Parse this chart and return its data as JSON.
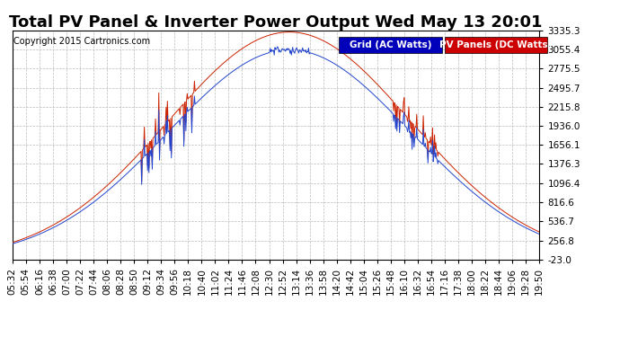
{
  "title": "Total PV Panel & Inverter Power Output Wed May 13 20:01",
  "copyright": "Copyright 2015 Cartronics.com",
  "legend_grid": "Grid (AC Watts)",
  "legend_pv": "PV Panels (DC Watts)",
  "legend_grid_bg": "#0000bb",
  "legend_pv_bg": "#cc0000",
  "line_grid_color": "#2244cc",
  "line_pv_color": "#cc2200",
  "background_color": "#ffffff",
  "plot_bg_color": "#ffffff",
  "grid_color": "#bbbbbb",
  "yticks": [
    -23.0,
    256.8,
    536.7,
    816.6,
    1096.4,
    1376.3,
    1656.1,
    1936.0,
    2215.8,
    2495.7,
    2775.5,
    3055.4,
    3335.3
  ],
  "ymin": -23.0,
  "ymax": 3335.3,
  "xtick_labels": [
    "05:32",
    "05:54",
    "06:16",
    "06:38",
    "07:00",
    "07:22",
    "07:44",
    "08:06",
    "08:28",
    "08:50",
    "09:12",
    "09:34",
    "09:56",
    "10:18",
    "10:40",
    "11:02",
    "11:24",
    "11:46",
    "12:08",
    "12:30",
    "12:52",
    "13:14",
    "13:36",
    "13:58",
    "14:20",
    "14:42",
    "15:04",
    "15:26",
    "15:48",
    "16:10",
    "16:32",
    "16:54",
    "17:16",
    "17:38",
    "18:00",
    "18:22",
    "18:44",
    "19:06",
    "19:28",
    "19:50"
  ],
  "title_fontsize": 13,
  "copyright_fontsize": 7,
  "tick_fontsize": 7.5,
  "legend_fontsize": 7.5
}
